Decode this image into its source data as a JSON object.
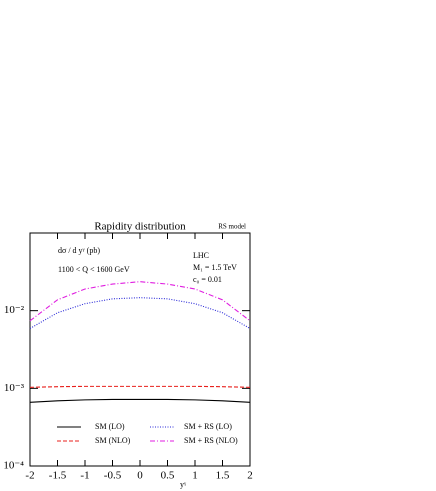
{
  "chart_data": {
    "type": "line",
    "title": "Rapidity distribution",
    "subtitle": "RS model",
    "xlabel": "yᵞ",
    "ylabel": "dσ / d yᵞ (pb)",
    "annotations": [
      "1100 < Q < 1600 GeV",
      "LHC",
      "M₁ = 1.5 TeV",
      "c₀ = 0.01"
    ],
    "log_y": true,
    "x": [
      -2,
      -1.5,
      -1,
      -0.5,
      0,
      0.5,
      1,
      1.5,
      2
    ],
    "series": [
      {
        "name": "SM (LO)",
        "color": "#000000",
        "dash": "solid",
        "values": [
          0.00066,
          0.00069,
          0.00071,
          0.00072,
          0.00072,
          0.00072,
          0.00071,
          0.00069,
          0.00066
        ]
      },
      {
        "name": "SM (NLO)",
        "color": "#e8201c",
        "dash": "dashed",
        "values": [
          0.00103,
          0.00105,
          0.00106,
          0.00106,
          0.00106,
          0.00106,
          0.00106,
          0.00105,
          0.00103
        ]
      },
      {
        "name": "SM + RS (LO)",
        "color": "#2a2ad8",
        "dash": "dotted",
        "values": [
          0.0059,
          0.0094,
          0.0123,
          0.0142,
          0.0147,
          0.0142,
          0.0123,
          0.0094,
          0.0059
        ]
      },
      {
        "name": "SM + RS (NLO)",
        "color": "#e01ee0",
        "dash": "dashdot",
        "values": [
          0.0074,
          0.0138,
          0.019,
          0.022,
          0.0236,
          0.022,
          0.019,
          0.0138,
          0.0074
        ]
      }
    ],
    "xlim": [
      -2,
      2
    ],
    "xticks": [
      -2,
      -1.5,
      -1,
      -0.5,
      0,
      0.5,
      1,
      1.5,
      2
    ],
    "ylim": [
      0.0001,
      0.1
    ],
    "yticks": [
      {
        "value": 0.0001,
        "label": "10⁻⁴"
      },
      {
        "value": 0.001,
        "label": "10⁻³"
      },
      {
        "value": 0.01,
        "label": "10⁻²"
      }
    ]
  }
}
